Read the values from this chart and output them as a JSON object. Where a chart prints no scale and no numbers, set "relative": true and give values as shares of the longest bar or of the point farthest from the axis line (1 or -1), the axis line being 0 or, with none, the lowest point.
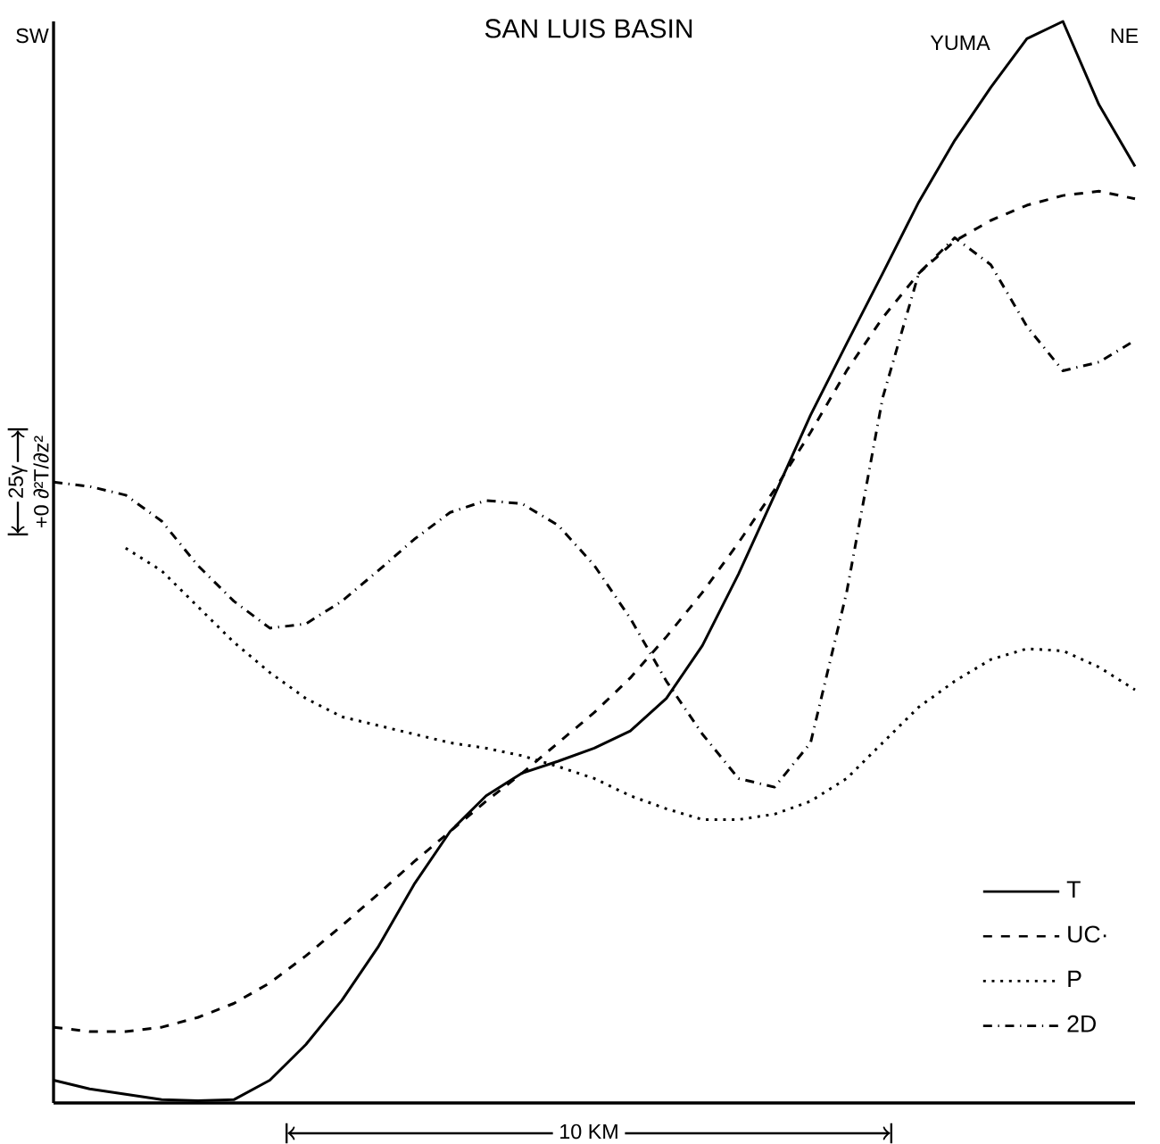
{
  "chart_data": {
    "type": "line",
    "title": "SAN LUIS BASIN",
    "relative": true,
    "categories": [
      null,
      null,
      null,
      null,
      null,
      null,
      null,
      null,
      null,
      null,
      null,
      null,
      null,
      null,
      null,
      null,
      null,
      null,
      null,
      null,
      null,
      null,
      null,
      null,
      null,
      null,
      null,
      null,
      null,
      null,
      null
    ],
    "series": [
      {
        "name": "T",
        "color": "#000000",
        "line_style": "solid",
        "values": [
          0.021,
          0.013,
          0.008,
          0.003,
          0.002,
          0.003,
          0.021,
          0.054,
          0.095,
          0.144,
          0.202,
          0.251,
          0.284,
          0.305,
          0.316,
          0.328,
          0.344,
          0.374,
          0.423,
          0.489,
          0.562,
          0.636,
          0.702,
          0.767,
          0.833,
          0.89,
          0.939,
          0.984,
          1.0,
          0.923,
          0.866
        ]
      },
      {
        "name": "UC·",
        "color": "#000000",
        "line_style": "dashed",
        "values": [
          0.07,
          0.066,
          0.066,
          0.07,
          0.079,
          0.092,
          0.111,
          0.136,
          0.164,
          0.193,
          0.223,
          0.251,
          0.279,
          0.305,
          0.333,
          0.361,
          0.393,
          0.431,
          0.472,
          0.518,
          0.567,
          0.62,
          0.677,
          0.726,
          0.767,
          0.797,
          0.816,
          0.83,
          0.839,
          0.843,
          0.836
        ]
      },
      {
        "name": "P",
        "color": "#000000",
        "line_style": "dotted",
        "values": [
          null,
          null,
          0.513,
          0.492,
          0.459,
          0.426,
          0.398,
          0.374,
          0.357,
          0.349,
          0.341,
          0.333,
          0.328,
          0.321,
          0.311,
          0.3,
          0.284,
          0.272,
          0.262,
          0.262,
          0.267,
          0.279,
          0.3,
          0.333,
          0.366,
          0.39,
          0.41,
          0.42,
          0.418,
          0.403,
          0.382
        ]
      },
      {
        "name": "2D",
        "color": "#000000",
        "line_style": "dashdot",
        "values": [
          0.574,
          0.57,
          0.562,
          0.538,
          0.497,
          0.464,
          0.439,
          0.443,
          0.464,
          0.492,
          0.521,
          0.546,
          0.557,
          0.554,
          0.534,
          0.497,
          0.448,
          0.39,
          0.341,
          0.3,
          0.292,
          0.333,
          0.472,
          0.652,
          0.767,
          0.8,
          0.775,
          0.718,
          0.677,
          0.685,
          0.705
        ]
      }
    ],
    "annotations": [
      "SW",
      "NE",
      "YUMA",
      "25γ",
      "+0 ∂²T/∂z²",
      "10 KM"
    ],
    "legend": "bottom right"
  }
}
